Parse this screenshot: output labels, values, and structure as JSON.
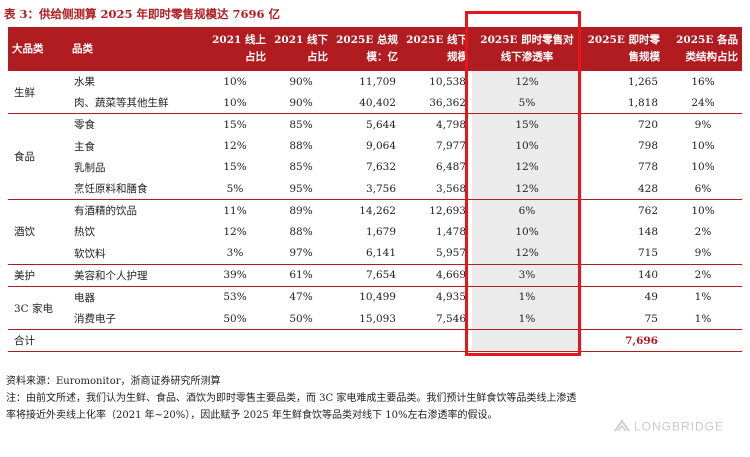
{
  "title": "表 3：供给侧测算 2025 年即时零售规模达 7696 亿",
  "headers": {
    "category": "大品类",
    "product": "品类",
    "online_share_2021": "2021 线上占比",
    "offline_share_2021": "2021 线下占比",
    "total_scale_2025": "2025E 总规模：亿",
    "offline_scale_2025": "2025E 线下规模",
    "penetration_2025": "2025E 即时零售对线下渗透率",
    "instant_retail_scale_2025": "2025E 即时零售规模",
    "structure_share_2025": "2025E 各品类结构占比"
  },
  "groups": [
    {
      "category": "生鲜",
      "rows": [
        {
          "product": "水果",
          "online": "10%",
          "offline": "90%",
          "total": "11,709",
          "offline_scale": "10,538",
          "penetration": "12%",
          "instant": "1,265",
          "share": "16%"
        },
        {
          "product": "肉、蔬菜等其他生鲜",
          "online": "10%",
          "offline": "90%",
          "total": "40,402",
          "offline_scale": "36,362",
          "penetration": "5%",
          "instant": "1,818",
          "share": "24%"
        }
      ]
    },
    {
      "category": "食品",
      "rows": [
        {
          "product": "零食",
          "online": "15%",
          "offline": "85%",
          "total": "5,644",
          "offline_scale": "4,798",
          "penetration": "15%",
          "instant": "720",
          "share": "9%"
        },
        {
          "product": "主食",
          "online": "12%",
          "offline": "88%",
          "total": "9,064",
          "offline_scale": "7,977",
          "penetration": "10%",
          "instant": "798",
          "share": "10%"
        },
        {
          "product": "乳制品",
          "online": "15%",
          "offline": "85%",
          "total": "7,632",
          "offline_scale": "6,487",
          "penetration": "12%",
          "instant": "778",
          "share": "10%"
        },
        {
          "product": "烹饪原料和膳食",
          "online": "5%",
          "offline": "95%",
          "total": "3,756",
          "offline_scale": "3,568",
          "penetration": "12%",
          "instant": "428",
          "share": "6%"
        }
      ]
    },
    {
      "category": "酒饮",
      "rows": [
        {
          "product": "有酒精的饮品",
          "online": "11%",
          "offline": "89%",
          "total": "14,262",
          "offline_scale": "12,693",
          "penetration": "6%",
          "instant": "762",
          "share": "10%"
        },
        {
          "product": "热饮",
          "online": "12%",
          "offline": "88%",
          "total": "1,679",
          "offline_scale": "1,478",
          "penetration": "10%",
          "instant": "148",
          "share": "2%"
        },
        {
          "product": "软饮料",
          "online": "3%",
          "offline": "97%",
          "total": "6,141",
          "offline_scale": "5,957",
          "penetration": "12%",
          "instant": "715",
          "share": "9%"
        }
      ]
    },
    {
      "category": "美护",
      "rows": [
        {
          "product": "美容和个人护理",
          "online": "39%",
          "offline": "61%",
          "total": "7,654",
          "offline_scale": "4,669",
          "penetration": "3%",
          "instant": "140",
          "share": "2%"
        }
      ]
    },
    {
      "category": "3C 家电",
      "rows": [
        {
          "product": "电器",
          "online": "53%",
          "offline": "47%",
          "total": "10,499",
          "offline_scale": "4,935",
          "penetration": "1%",
          "instant": "49",
          "share": "1%"
        },
        {
          "product": "消费电子",
          "online": "50%",
          "offline": "50%",
          "total": "15,093",
          "offline_scale": "7,546",
          "penetration": "1%",
          "instant": "75",
          "share": "1%"
        }
      ]
    }
  ],
  "total_row": {
    "label": "合计",
    "instant": "7,696"
  },
  "source": "资料来源：Euromonitor，浙商证券研究所测算",
  "note_line1": "注：由前文所述，我们认为生鲜、食品、酒饮为即时零售主要品类，而 3C 家电难成主要品类。我们预计生鲜食饮等品类线上渗透",
  "note_line2": "率将接近外卖线上化率（2021 年~20%），因此赋予 2025 年生鲜食饮等品类对线下 10%左右渗透率的假设。",
  "watermark": "LONGBRIDGE",
  "colors": {
    "header_bg": "#b01c20",
    "highlight_box": "#e5161d",
    "highlight_fill": "#ebebeb"
  }
}
